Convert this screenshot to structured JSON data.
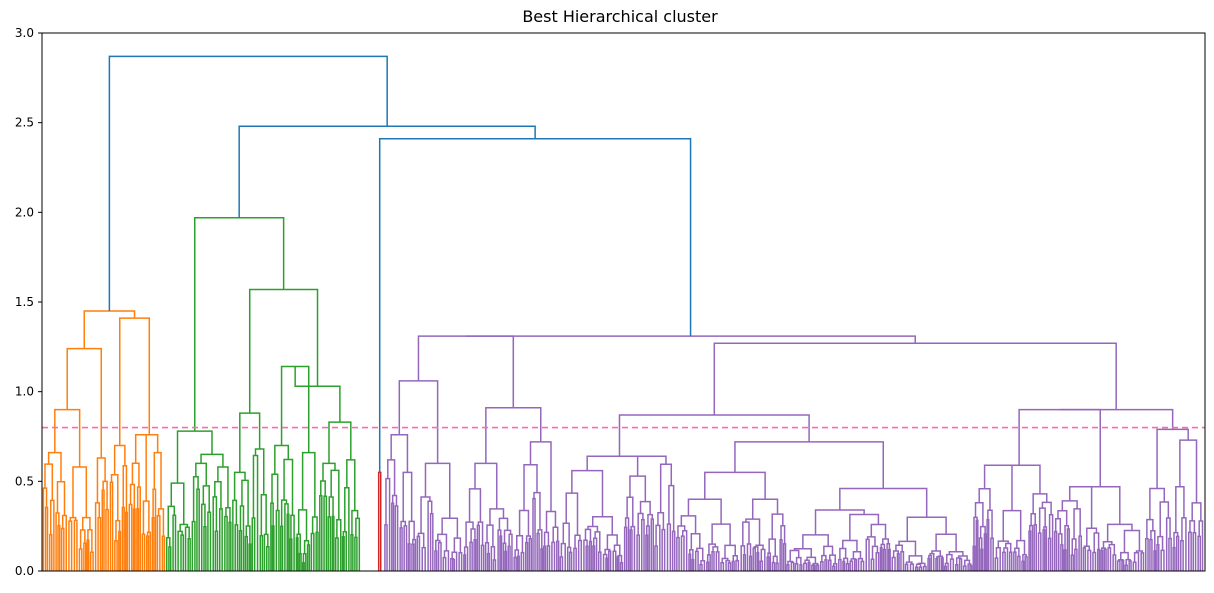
{
  "chart_data": {
    "type": "dendrogram",
    "title": "Best Hierarchical cluster",
    "xlabel": "",
    "ylabel": "",
    "ylim": [
      0,
      3.0
    ],
    "yticks": [
      0.0,
      0.5,
      1.0,
      1.5,
      2.0,
      2.5,
      3.0
    ],
    "ytick_labels": [
      "0.0",
      "0.5",
      "1.0",
      "1.5",
      "2.0",
      "2.5",
      "3.0"
    ],
    "x_ticks_visible": false,
    "grid": false,
    "cut_threshold": 0.8,
    "colors": {
      "orange": "#ff7f0e",
      "green": "#2ca02c",
      "red": "#d62728",
      "purple": "#9467bd",
      "blue": "#1f77b4",
      "threshold": "#ff69b4"
    },
    "clusters": [
      {
        "color": "#ff7f0e",
        "merge_height": 1.45
      },
      {
        "color": "#2ca02c",
        "merge_height": 1.97
      },
      {
        "color": "#d62728",
        "merge_height": 0.55
      },
      {
        "color": "#9467bd",
        "merge_height": 1.31
      }
    ],
    "upper_merges": [
      2.87,
      2.48,
      2.41
    ]
  }
}
